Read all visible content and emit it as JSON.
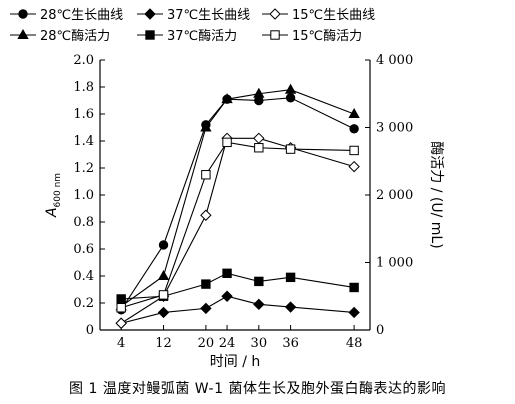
{
  "caption": "图 1 温度对鳗弧菌 W-1 菌体生长及胞外蛋白酶表达的影响",
  "chart_data": {
    "type": "line",
    "xlabel": "时间 / h",
    "ylabel_left": "A600 nm",
    "ylabel_left_main": "A",
    "ylabel_left_sub": "600 nm",
    "ylabel_right": "酶活力 / (U/ mL)",
    "x": [
      4,
      12,
      20,
      24,
      30,
      36,
      48
    ],
    "x_tick_labels": [
      "4",
      "12",
      "20",
      "24",
      "30",
      "36",
      "48"
    ],
    "ylim_left": [
      0,
      2.0
    ],
    "y_left_ticks": [
      "0",
      "0.2",
      "0.4",
      "0.6",
      "0.8",
      "1.0",
      "1.2",
      "1.4",
      "1.6",
      "1.8",
      "2.0"
    ],
    "ylim_right": [
      0,
      4000
    ],
    "y_right_ticks": [
      "0",
      "1 000",
      "2 000",
      "3 000",
      "4 000"
    ],
    "grid": false,
    "legend_position": "top",
    "series": [
      {
        "name": "28℃生长曲线",
        "axis": "left",
        "marker": "circle-filled",
        "values": [
          0.15,
          0.63,
          1.52,
          1.71,
          1.7,
          1.72,
          1.49
        ]
      },
      {
        "name": "37℃生长曲线",
        "axis": "left",
        "marker": "diamond-filled",
        "values": [
          0.05,
          0.13,
          0.16,
          0.25,
          0.19,
          0.17,
          0.13
        ]
      },
      {
        "name": "15℃生长曲线",
        "axis": "left",
        "marker": "diamond-open",
        "values": [
          0.05,
          0.25,
          0.85,
          1.42,
          1.42,
          1.35,
          1.21
        ]
      },
      {
        "name": "28℃酶活力",
        "axis": "right",
        "marker": "triangle-filled",
        "values": [
          350,
          800,
          3000,
          3420,
          3500,
          3560,
          3200
        ]
      },
      {
        "name": "37℃酶活力",
        "axis": "right",
        "marker": "square-filled",
        "values": [
          460,
          500,
          680,
          840,
          720,
          780,
          630
        ]
      },
      {
        "name": "15℃酶活力",
        "axis": "right",
        "marker": "square-open",
        "values": [
          330,
          520,
          2300,
          2780,
          2700,
          2680,
          2660
        ]
      }
    ]
  }
}
